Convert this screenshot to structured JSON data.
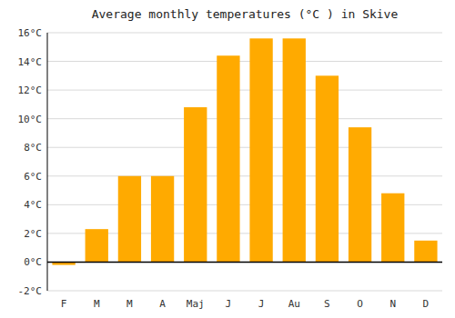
{
  "chart_data": {
    "type": "bar",
    "title": "Average monthly temperatures (°C ) in Skive",
    "categories": [
      "F",
      "M",
      "M",
      "A",
      "Maj",
      "J",
      "J",
      "Au",
      "S",
      "O",
      "N",
      "D"
    ],
    "values": [
      -0.2,
      2.3,
      6.0,
      6.0,
      10.8,
      14.4,
      15.6,
      15.6,
      13.0,
      9.4,
      4.8,
      1.5
    ],
    "color": "#FFAA00",
    "ylim": [
      -2,
      16
    ],
    "yticks": [
      {
        "value": -2,
        "label": "-2°C"
      },
      {
        "value": 0,
        "label": "0°C"
      },
      {
        "value": 2,
        "label": "2°C"
      },
      {
        "value": 4,
        "label": "4°C"
      },
      {
        "value": 6,
        "label": "6°C"
      },
      {
        "value": 8,
        "label": "8°C"
      },
      {
        "value": 10,
        "label": "10°C"
      },
      {
        "value": 12,
        "label": "12°C"
      },
      {
        "value": 14,
        "label": "14°C"
      },
      {
        "value": 16,
        "label": "16°C"
      }
    ],
    "grid": true
  }
}
